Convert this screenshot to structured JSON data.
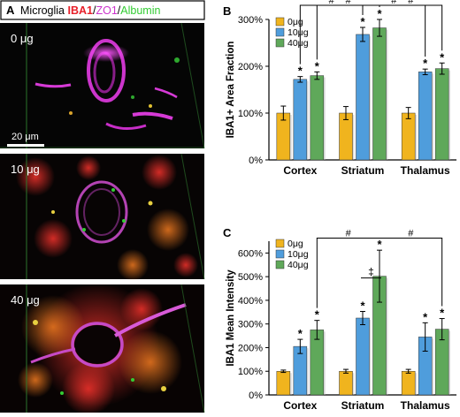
{
  "panel_a": {
    "label": "A",
    "title_prefix": "Microglia ",
    "title_iba1": "IBA1",
    "title_sep1": "/",
    "title_zo1": "ZO1",
    "title_sep2": "/",
    "title_albumin": "Albumin",
    "colors": {
      "iba1": "#e8202a",
      "zo1": "#cc33cc",
      "albumin": "#33cc33"
    },
    "images": [
      {
        "dose_label": "0 μg",
        "scale_bar": "20 μm"
      },
      {
        "dose_label": "10 μg"
      },
      {
        "dose_label": "40 μg"
      }
    ]
  },
  "chart_data": [
    {
      "panel": "B",
      "type": "bar",
      "ylabel": "IBA1+ Area Fraction",
      "ylim": [
        0,
        300
      ],
      "yticks": [
        0,
        100,
        200,
        300
      ],
      "ytick_labels": [
        "0%",
        "100%",
        "200%",
        "300%"
      ],
      "categories": [
        "Cortex",
        "Striatum",
        "Thalamus"
      ],
      "legend_position": "top-left",
      "series": [
        {
          "name": "0μg",
          "color": "#f0b41e",
          "values": [
            100,
            100,
            100
          ],
          "errors": [
            15,
            14,
            12
          ]
        },
        {
          "name": "10μg",
          "color": "#4f9ddc",
          "values": [
            172,
            268,
            188
          ],
          "errors": [
            6,
            15,
            6
          ]
        },
        {
          "name": "40μg",
          "color": "#5fa85a",
          "values": [
            180,
            282,
            195
          ],
          "errors": [
            8,
            18,
            12
          ]
        }
      ],
      "stars": [
        [
          false,
          true,
          true
        ],
        [
          false,
          true,
          true
        ],
        [
          false,
          true,
          true
        ]
      ],
      "star_text": "*",
      "brackets": [
        {
          "label": "#",
          "levels": [
            315,
            333
          ]
        },
        {
          "label": "#",
          "levels": [
            333,
            326
          ]
        },
        {
          "label": "#",
          "levels": [
            343,
            343
          ]
        },
        {
          "label": "#",
          "levels": [
            343,
            336
          ]
        }
      ]
    },
    {
      "panel": "C",
      "type": "bar",
      "ylabel": "IBA1 Mean Intensity",
      "ylim": [
        0,
        650
      ],
      "yticks": [
        0,
        100,
        200,
        300,
        400,
        500,
        600
      ],
      "ytick_labels": [
        "0%",
        "100%",
        "200%",
        "300%",
        "400%",
        "500%",
        "600%"
      ],
      "categories": [
        "Cortex",
        "Striatum",
        "Thalamus"
      ],
      "legend_position": "top-left",
      "series": [
        {
          "name": "0μg",
          "color": "#f0b41e",
          "values": [
            100,
            100,
            100
          ],
          "errors": [
            5,
            8,
            8
          ]
        },
        {
          "name": "10μg",
          "color": "#4f9ddc",
          "values": [
            205,
            325,
            245
          ],
          "errors": [
            30,
            28,
            60
          ]
        },
        {
          "name": "40μg",
          "color": "#5fa85a",
          "values": [
            275,
            502,
            278
          ],
          "errors": [
            40,
            110,
            45
          ]
        }
      ],
      "stars": [
        [
          false,
          true,
          true
        ],
        [
          false,
          true,
          true
        ],
        [
          false,
          true,
          true
        ]
      ],
      "star_text": "*",
      "brackets": [
        {
          "label": "#",
          "levels": [
            648,
            648
          ]
        },
        {
          "label": "#",
          "levels": [
            648,
            605
          ]
        }
      ],
      "double_dagger": {
        "label": "‡"
      }
    }
  ],
  "panel_labels": {
    "b": "B",
    "c": "C"
  }
}
